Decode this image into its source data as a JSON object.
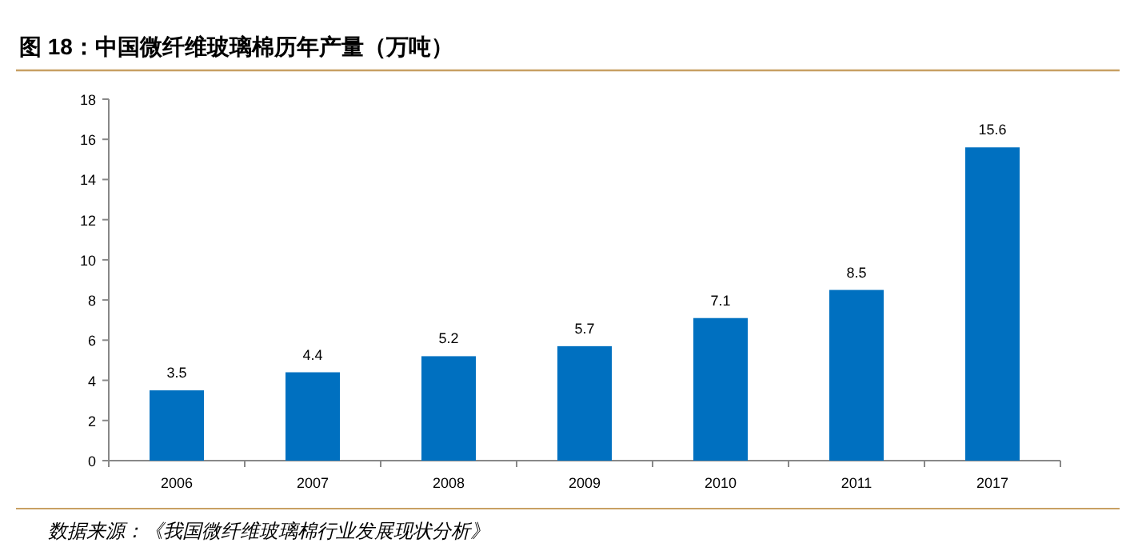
{
  "chart_data": {
    "type": "bar",
    "title": "图 18：中国微纤维玻璃棉历年产量（万吨）",
    "categories": [
      "2006",
      "2007",
      "2008",
      "2009",
      "2010",
      "2011",
      "2017"
    ],
    "values": [
      3.5,
      4.4,
      5.2,
      5.7,
      7.1,
      8.5,
      15.6
    ],
    "color": "#0070c0",
    "ylim": [
      0,
      18
    ],
    "yticks": [
      0,
      2,
      4,
      6,
      8,
      10,
      12,
      14,
      16,
      18
    ],
    "data_labels": true,
    "annotations": [
      "数据来源：《我国微纤维玻璃棉行业发展现状分析》"
    ]
  }
}
